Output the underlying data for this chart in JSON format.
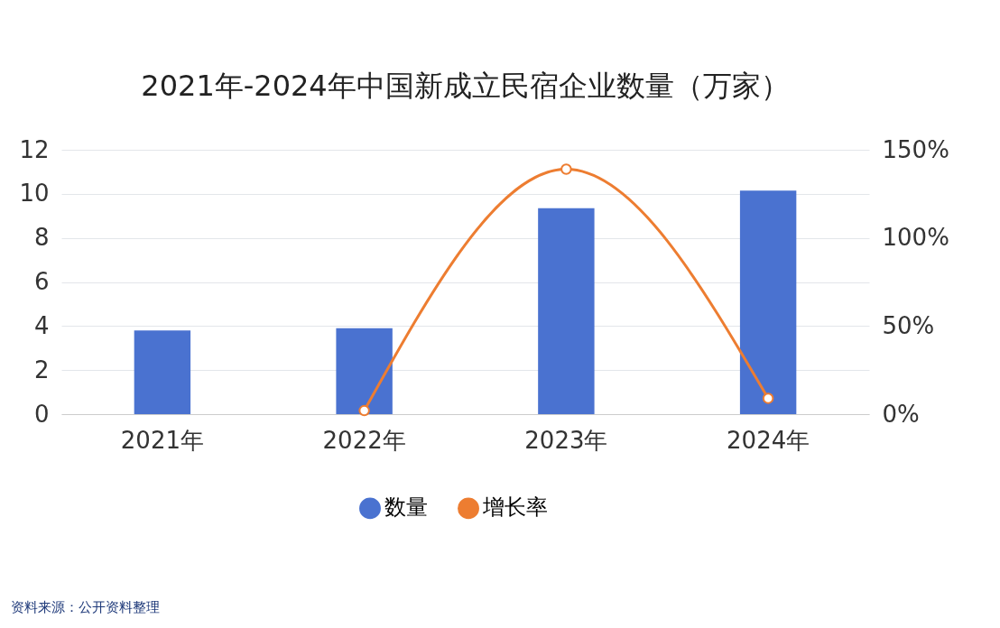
{
  "chart_data": {
    "type": "bar",
    "title": "2021年-2024年中国新成立民宿企业数量（万家）",
    "categories": [
      "2021年",
      "2022年",
      "2023年",
      "2024年"
    ],
    "series": [
      {
        "name": "数量",
        "color": "#4a72d0",
        "values": [
          3.8,
          3.9,
          9.35,
          10.15
        ]
      },
      {
        "name": "增长率",
        "type": "line",
        "axis": "y2",
        "color": "#ed7d31",
        "marker": "circle",
        "values": [
          null,
          2,
          139,
          9
        ]
      }
    ],
    "ylim": [
      0,
      12
    ],
    "yticks": [
      0,
      2,
      4,
      6,
      8,
      10,
      12
    ],
    "y2lim": [
      0,
      150
    ],
    "y2ticks": [
      {
        "value": 0,
        "label": "0%"
      },
      {
        "value": 50,
        "label": "50%"
      },
      {
        "value": 100,
        "label": "100%"
      },
      {
        "value": 150,
        "label": "150%"
      }
    ],
    "grid": "y",
    "legend": "bottom",
    "annotations": [
      "资料来源：公开资料整理"
    ]
  }
}
